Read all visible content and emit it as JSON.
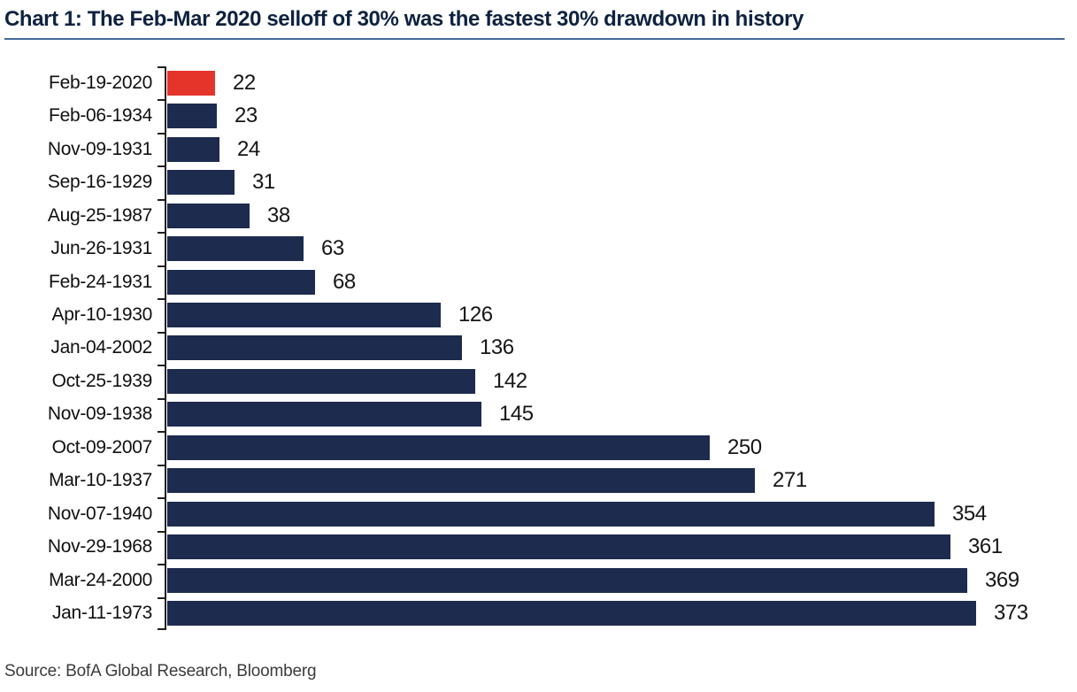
{
  "page": {
    "title": "Chart 1: The Feb-Mar 2020 selloff of 30% was the fastest 30% drawdown in history",
    "source": "Source: BofA Global Research, Bloomberg"
  },
  "colors": {
    "bar_default": "#1c2b4e",
    "bar_highlight": "#e5352b",
    "title_text": "#0e2240",
    "title_rule": "#44699d",
    "axis": "#1f1f1f"
  },
  "chart_data": {
    "type": "bar",
    "orientation": "horizontal",
    "title": "Chart 1: The Feb-Mar 2020 selloff of 30% was the fastest 30% drawdown in history",
    "categories": [
      "Feb-19-2020",
      "Feb-06-1934",
      "Nov-09-1931",
      "Sep-16-1929",
      "Aug-25-1987",
      "Jun-26-1931",
      "Feb-24-1931",
      "Apr-10-1930",
      "Jan-04-2002",
      "Oct-25-1939",
      "Nov-09-1938",
      "Oct-09-2007",
      "Mar-10-1937",
      "Nov-07-1940",
      "Nov-29-1968",
      "Mar-24-2000",
      "Jan-11-1973"
    ],
    "values": [
      22,
      23,
      24,
      31,
      38,
      63,
      68,
      126,
      136,
      142,
      145,
      250,
      271,
      354,
      361,
      369,
      373
    ],
    "highlight_index": 0,
    "value_labels_shown": true,
    "grid": false,
    "legend": false,
    "source": "Source: BofA Global Research, Bloomberg"
  }
}
